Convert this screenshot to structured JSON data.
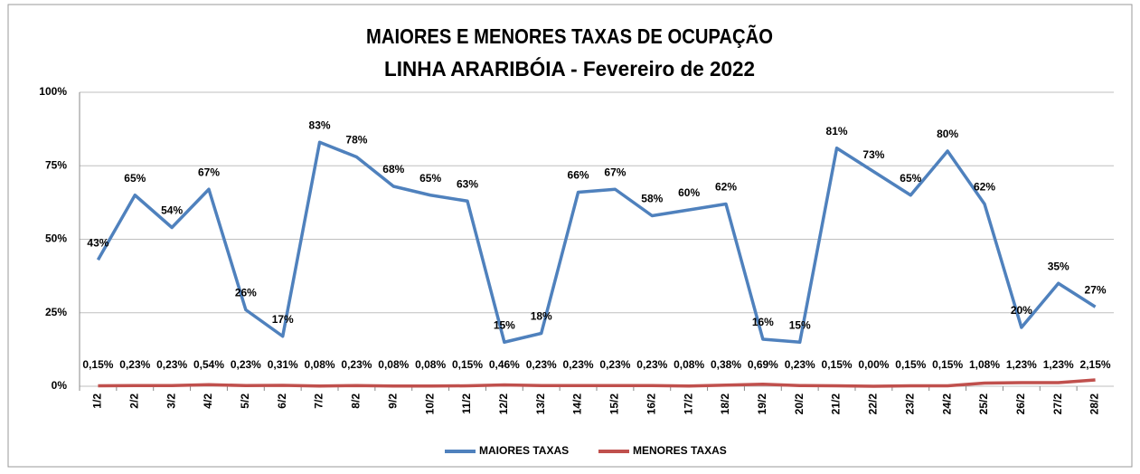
{
  "chart_data": {
    "type": "line",
    "title": "MAIORES E MENORES TAXAS DE OCUPAÇÃO",
    "subtitle": "LINHA ARARIBÓIA - Fevereiro de 2022",
    "categories": [
      "1/2",
      "2/2",
      "3/2",
      "4/2",
      "5/2",
      "6/2",
      "7/2",
      "8/2",
      "9/2",
      "10/2",
      "11/2",
      "12/2",
      "13/2",
      "14/2",
      "15/2",
      "16/2",
      "17/2",
      "18/2",
      "19/2",
      "20/2",
      "21/2",
      "22/2",
      "23/2",
      "24/2",
      "25/2",
      "26/2",
      "27/2",
      "28/2"
    ],
    "series": [
      {
        "name": "MAIORES TAXAS",
        "color": "#4f81bd",
        "values": [
          43,
          65,
          54,
          67,
          26,
          17,
          83,
          78,
          68,
          65,
          63,
          15,
          18,
          66,
          67,
          58,
          60,
          62,
          16,
          15,
          81,
          73,
          65,
          80,
          62,
          20,
          35,
          27
        ],
        "value_labels": [
          "43%",
          "65%",
          "54%",
          "67%",
          "26%",
          "17%",
          "83%",
          "78%",
          "68%",
          "65%",
          "63%",
          "15%",
          "18%",
          "66%",
          "67%",
          "58%",
          "60%",
          "62%",
          "16%",
          "15%",
          "81%",
          "73%",
          "65%",
          "80%",
          "62%",
          "20%",
          "35%",
          "27%"
        ]
      },
      {
        "name": "MENORES TAXAS",
        "color": "#c0504d",
        "values": [
          0.15,
          0.23,
          0.23,
          0.54,
          0.23,
          0.31,
          0.08,
          0.23,
          0.08,
          0.08,
          0.15,
          0.46,
          0.23,
          0.23,
          0.23,
          0.23,
          0.08,
          0.38,
          0.69,
          0.23,
          0.15,
          0.0,
          0.15,
          0.15,
          1.08,
          1.23,
          1.23,
          2.15
        ],
        "value_labels": [
          "0,15%",
          "0,23%",
          "0,23%",
          "0,54%",
          "0,23%",
          "0,31%",
          "0,08%",
          "0,23%",
          "0,08%",
          "0,08%",
          "0,15%",
          "0,46%",
          "0,23%",
          "0,23%",
          "0,23%",
          "0,23%",
          "0,08%",
          "0,38%",
          "0,69%",
          "0,23%",
          "0,15%",
          "0,00%",
          "0,15%",
          "0,15%",
          "1,08%",
          "1,23%",
          "1,23%",
          "2,15%"
        ]
      }
    ],
    "ylim": [
      0,
      100
    ],
    "yticks": [
      {
        "value": 0,
        "label": "0%"
      },
      {
        "value": 25,
        "label": "25%"
      },
      {
        "value": 50,
        "label": "50%"
      },
      {
        "value": 75,
        "label": "75%"
      },
      {
        "value": 100,
        "label": "100%"
      }
    ],
    "grid": true,
    "legend": "bottom"
  }
}
